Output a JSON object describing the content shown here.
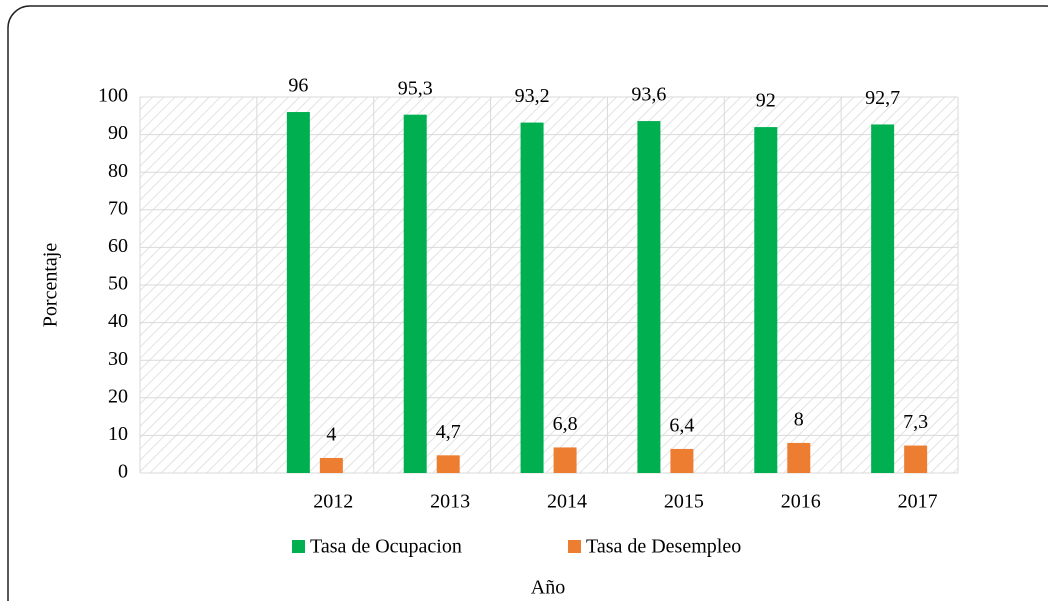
{
  "chart_data": {
    "type": "bar",
    "categories": [
      null,
      "2012",
      "2013",
      "2014",
      "2015",
      "2016",
      "2017"
    ],
    "series": [
      {
        "name": "Tasa de Ocupacion",
        "color": "#00b050",
        "values": [
          null,
          96,
          95.3,
          93.2,
          93.6,
          92,
          92.7
        ],
        "value_labels": [
          null,
          "96",
          "95,3",
          "93,2",
          "93,6",
          "92",
          "92,7"
        ]
      },
      {
        "name": "Tasa de Desempleo",
        "color": "#ed7d31",
        "values": [
          null,
          4,
          4.7,
          6.8,
          6.4,
          8,
          7.3
        ],
        "value_labels": [
          null,
          "4",
          "4,7",
          "6,8",
          "6,4",
          "8",
          "7,3"
        ]
      }
    ],
    "xlabel": "Año",
    "ylabel": "Porcentaje",
    "ylim": [
      0,
      100
    ],
    "yticks": [
      0,
      10,
      20,
      30,
      40,
      50,
      60,
      70,
      80,
      90,
      100
    ],
    "grid": true,
    "legend": "bottom"
  }
}
